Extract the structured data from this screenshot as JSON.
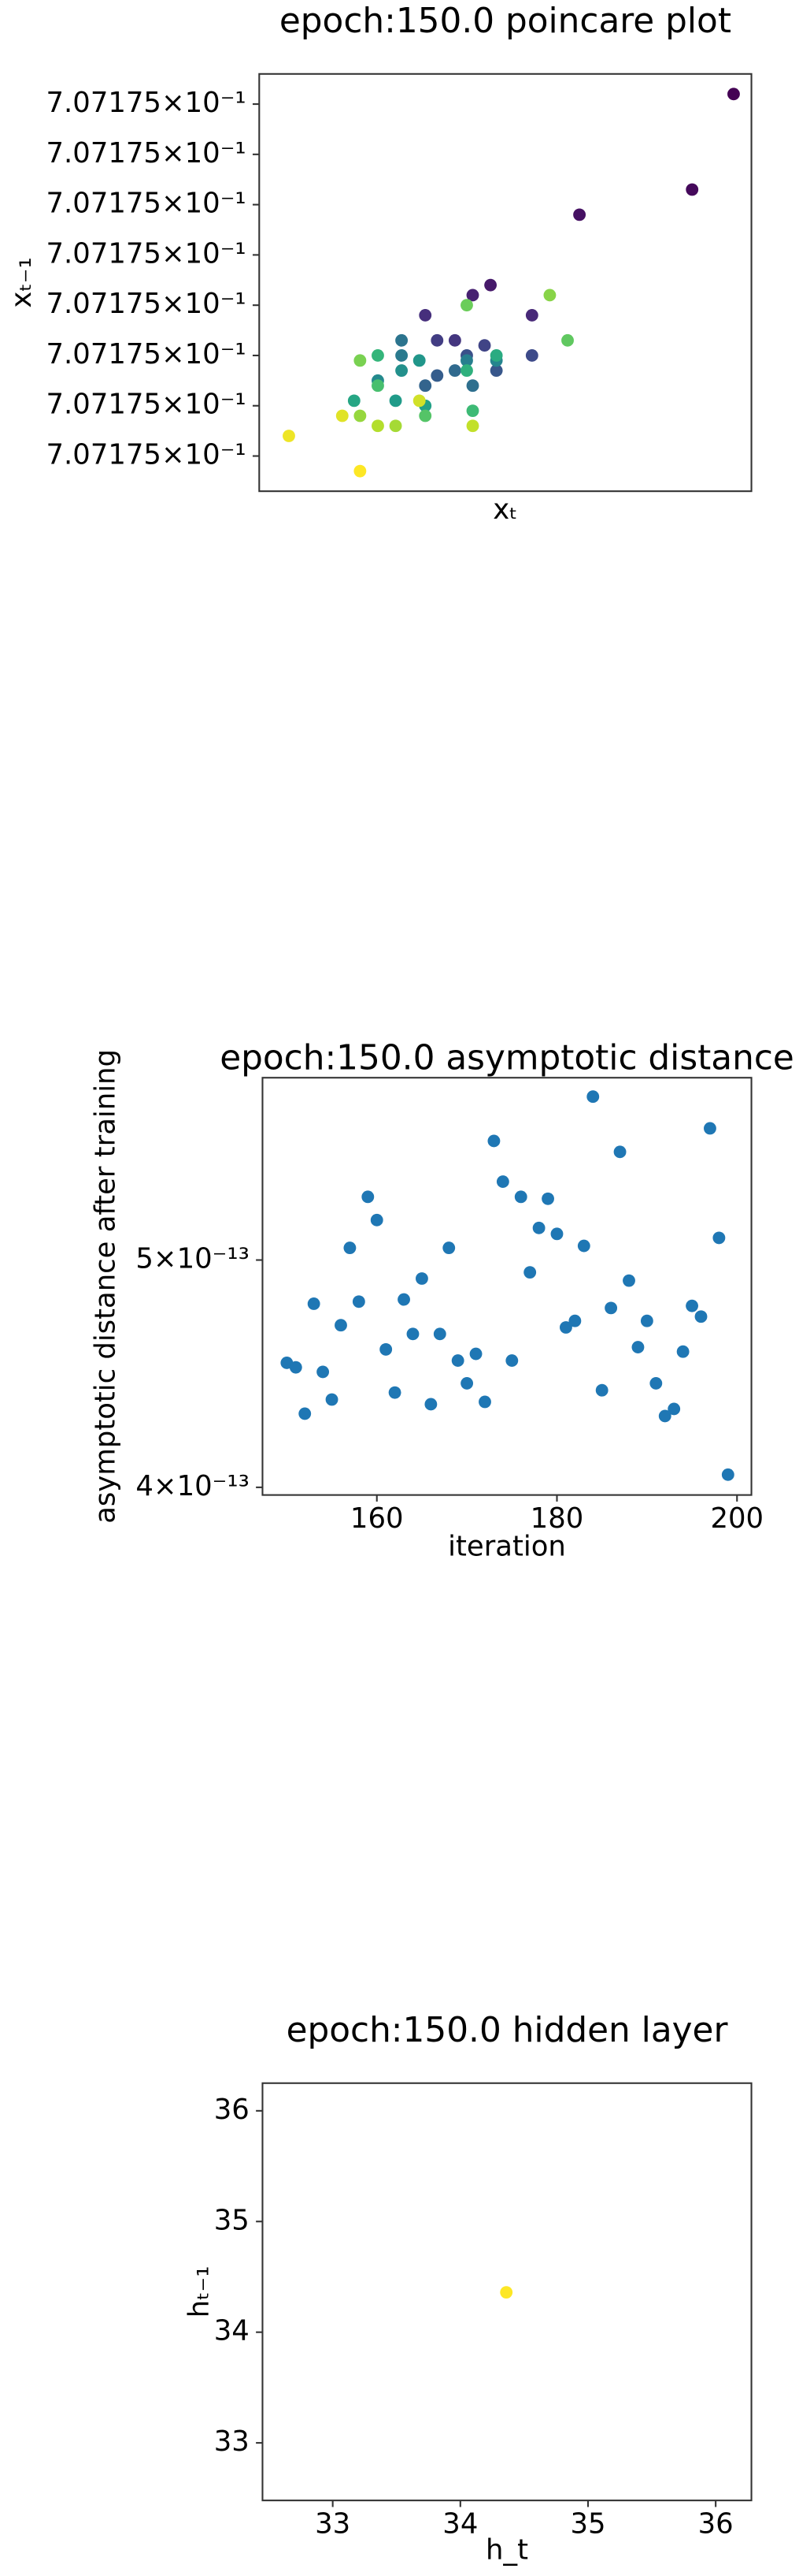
{
  "chart_data": [
    {
      "type": "scatter",
      "title": "epoch:150.0 poincare plot",
      "xlabel": "xₜ",
      "ylabel": "xₜ₋₁",
      "colormap": "viridis",
      "x": [
        0.7071750037,
        0.707175003,
        0.7071750011,
        0.7071749996,
        0.7071749993,
        0.7071750003,
        0.7071749985,
        0.707174999,
        0.7071749987,
        0.7071749995,
        0.7071750003,
        0.7071749992,
        0.7071749997,
        0.7071749987,
        0.7071749985,
        0.707174999,
        0.7071749993,
        0.7071749981,
        0.7071749981,
        0.7071749992,
        0.7071749997,
        0.7071749977,
        0.7071749981,
        0.7071749984,
        0.707174998,
        0.7071749985,
        0.7071749973,
        0.7071749997,
        0.7071749992,
        0.7071749977,
        0.7071749993,
        0.7071749977,
        0.7071749985,
        0.7071750009,
        0.7071749992,
        0.7071749974,
        0.7071750006,
        0.7071749974,
        0.707174998,
        0.7071749977,
        0.7071749993,
        0.7071749984,
        0.7071749971,
        0.7071749962,
        0.7071749974
      ],
      "y": [
        0.7071750037,
        0.7071750018,
        0.7071750013,
        0.7071749999,
        0.7071749997,
        0.7071749993,
        0.7071749993,
        0.7071749988,
        0.7071749988,
        0.7071749987,
        0.7071749985,
        0.7071749985,
        0.7071749982,
        0.7071749981,
        0.7071749979,
        0.7071749982,
        0.7071749979,
        0.7071749988,
        0.7071749985,
        0.7071749984,
        0.7071749984,
        0.707174998,
        0.7071749982,
        0.7071749984,
        0.7071749976,
        0.7071749975,
        0.7071749976,
        0.7071749985,
        0.7071749982,
        0.7071749985,
        0.7071749974,
        0.7071749979,
        0.7071749973,
        0.7071749988,
        0.7071749995,
        0.7071749984,
        0.7071749997,
        0.7071749973,
        0.7071749971,
        0.7071749971,
        0.7071749971,
        0.7071749976,
        0.7071749973,
        0.7071749969,
        0.7071749962
      ],
      "xlim": [
        0.7071749957,
        0.707175004
      ],
      "ylim": [
        0.7071749958,
        0.7071750041
      ],
      "yticks": [
        {
          "value": 0.7071750035,
          "label": "7.07175×10⁻¹"
        },
        {
          "value": 0.7071750025,
          "label": "7.07175×10⁻¹"
        },
        {
          "value": 0.7071750015,
          "label": "7.07175×10⁻¹"
        },
        {
          "value": 0.7071750005,
          "label": "7.07175×10⁻¹"
        },
        {
          "value": 0.7071749995,
          "label": "7.07175×10⁻¹"
        },
        {
          "value": 0.7071749985,
          "label": "7.07175×10⁻¹"
        },
        {
          "value": 0.7071749975,
          "label": "7.07175×10⁻¹"
        },
        {
          "value": 0.7071749965,
          "label": "7.07175×10⁻¹"
        }
      ]
    },
    {
      "type": "scatter",
      "title": "epoch:150.0 asymptotic distance",
      "xlabel": "iteration",
      "ylabel": "asymptotic distance after training",
      "color": "#1f77b4",
      "yscale": "log",
      "x": [
        150,
        151,
        152,
        153,
        154,
        155,
        156,
        157,
        158,
        159,
        160,
        161,
        162,
        163,
        164,
        165,
        166,
        167,
        168,
        169,
        170,
        171,
        172,
        173,
        174,
        175,
        176,
        177,
        178,
        179,
        180,
        181,
        182,
        183,
        184,
        185,
        186,
        187,
        188,
        189,
        190,
        191,
        192,
        193,
        194,
        195,
        196,
        197,
        198,
        199
      ],
      "y": [
        4.52e-13,
        4.5e-13,
        4.3e-13,
        4.79e-13,
        4.48e-13,
        4.36e-13,
        4.69e-13,
        5.06e-13,
        4.8e-13,
        5.32e-13,
        5.2e-13,
        4.58e-13,
        4.39e-13,
        4.81e-13,
        4.65e-13,
        4.91e-13,
        4.34e-13,
        4.65e-13,
        5.06e-13,
        4.53e-13,
        4.43e-13,
        4.56e-13,
        4.35e-13,
        5.62e-13,
        5.4e-13,
        4.53e-13,
        5.32e-13,
        4.94e-13,
        5.16e-13,
        5.31e-13,
        5.13e-13,
        4.68e-13,
        4.71e-13,
        5.07e-13,
        5.87e-13,
        4.4e-13,
        4.77e-13,
        5.56e-13,
        4.9e-13,
        4.59e-13,
        4.71e-13,
        4.43e-13,
        4.29e-13,
        4.32e-13,
        4.57e-13,
        4.78e-13,
        4.73e-13,
        5.69e-13,
        5.11e-13,
        4.05e-13
      ],
      "xlim": [
        147.3,
        201.6
      ],
      "ylim": [
        3.97e-13,
        5.98e-13
      ],
      "xticks": [
        160,
        180,
        200
      ],
      "yticks": [
        {
          "value": 4e-13,
          "label": "4×10⁻¹³"
        },
        {
          "value": 5e-13,
          "label": "5×10⁻¹³"
        }
      ]
    },
    {
      "type": "scatter",
      "title": "epoch:150.0 hidden layer",
      "xlabel": "h_t",
      "ylabel": "hₜ₋₁",
      "color": "#fde725",
      "x": [
        34.36
      ],
      "y": [
        34.36
      ],
      "xlim": [
        32.45,
        36.28
      ],
      "ylim": [
        32.48,
        36.25
      ],
      "xticks": [
        33,
        34,
        35,
        36
      ],
      "yticks": [
        33,
        34,
        35,
        36
      ]
    }
  ]
}
